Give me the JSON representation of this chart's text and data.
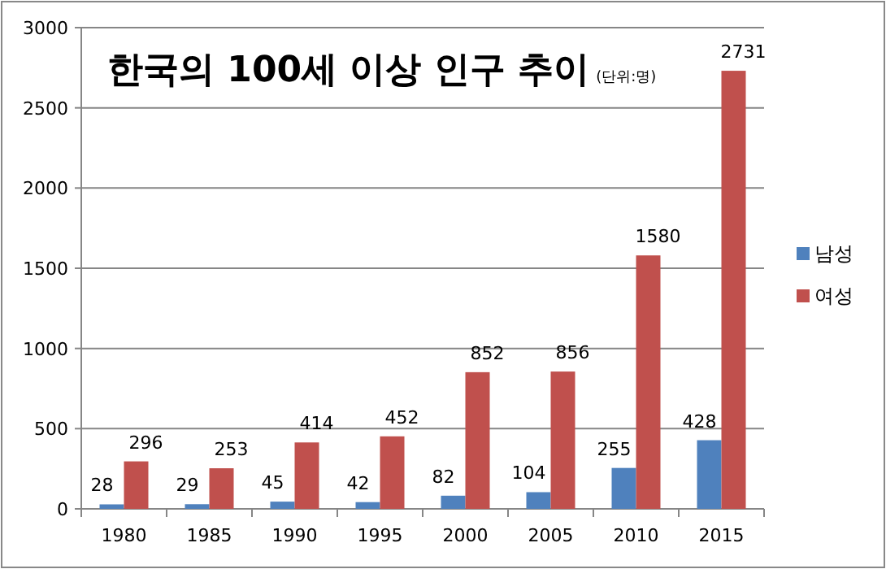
{
  "chart_data": {
    "type": "bar",
    "title": "한국의 100세 이상 인구 추이",
    "subtitle": "(단위:명)",
    "categories": [
      "1980",
      "1985",
      "1990",
      "1995",
      "2000",
      "2005",
      "2010",
      "2015"
    ],
    "series": [
      {
        "name": "남성",
        "color": "#4f81bd",
        "values": [
          28,
          29,
          45,
          42,
          82,
          104,
          255,
          428
        ]
      },
      {
        "name": "여성",
        "color": "#c0504d",
        "values": [
          296,
          253,
          414,
          452,
          852,
          856,
          1580,
          2731
        ]
      }
    ],
    "ylim": [
      0,
      3000
    ],
    "yticks": [
      0,
      500,
      1000,
      1500,
      2000,
      2500,
      3000
    ],
    "grid": "y",
    "legend": "right",
    "data_labels": true
  }
}
